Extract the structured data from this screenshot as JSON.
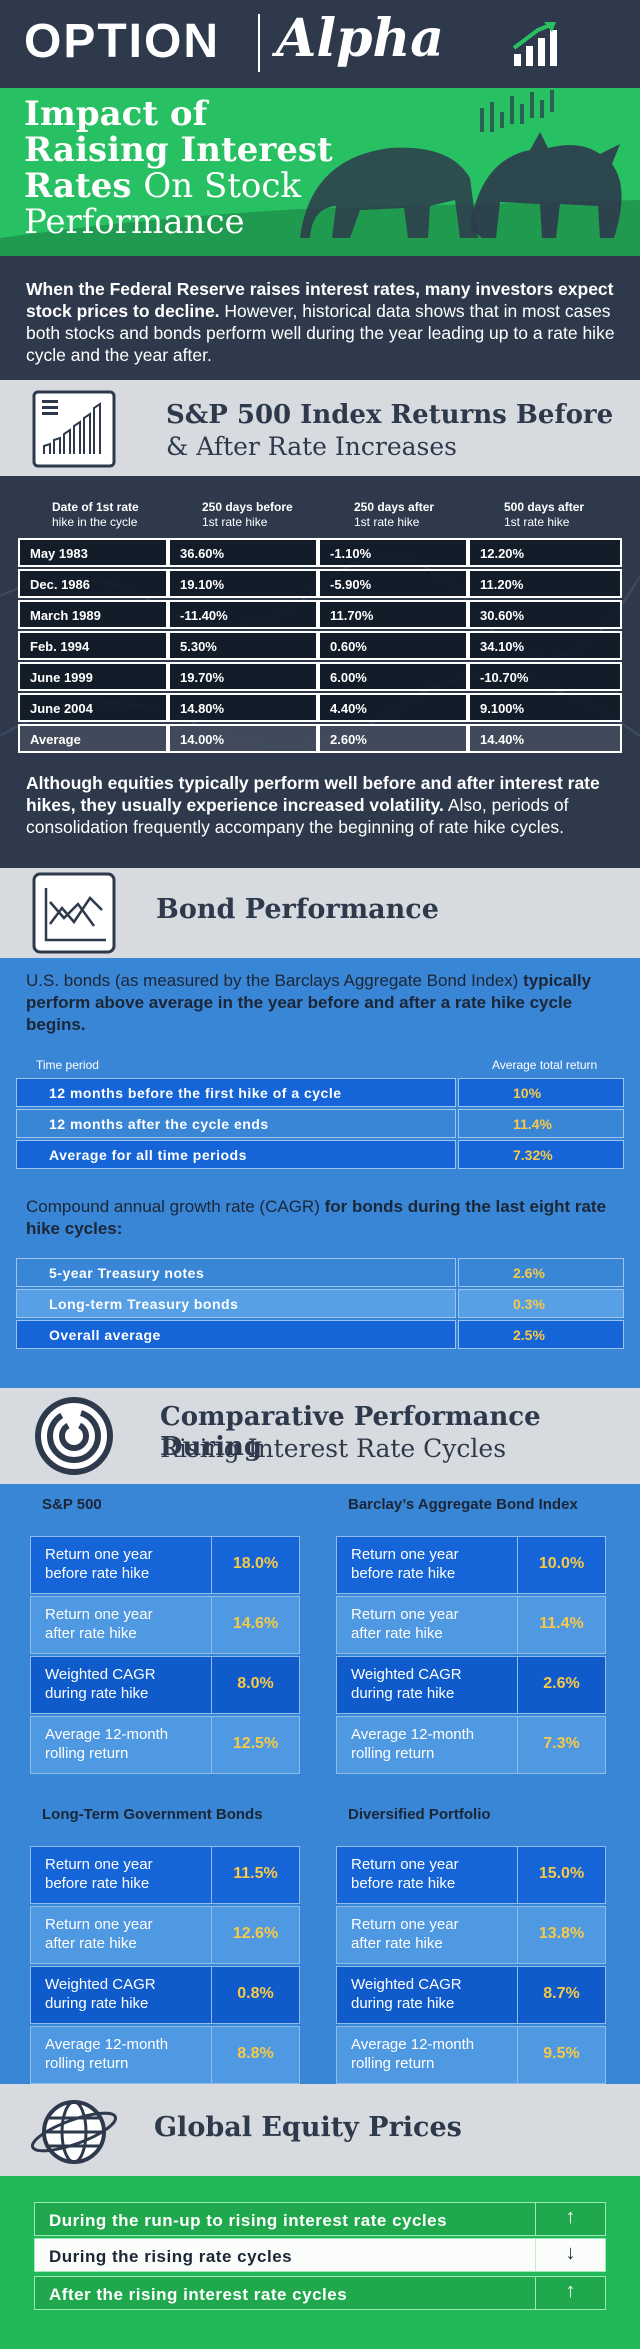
{
  "logo": {
    "option": "OPTION",
    "alpha": "Alpha"
  },
  "hero": {
    "line1": "Impact of",
    "line2": "Raising Interest",
    "line3a": "Rates",
    "line3b": "On Stock",
    "line4": "Performance"
  },
  "intro": {
    "bold": "When the Federal Reserve raises interest rates, many investors expect stock prices to decline.",
    "rest": " However, historical data shows that in most cases both stocks and bonds perform well during the year leading up to a rate hike cycle and the year after."
  },
  "section1": {
    "title_line1": "S&P 500 Index Returns Before",
    "title_line2": "& After Rate Increases",
    "columns": [
      {
        "bold": "Date of 1st rate",
        "sub": "hike in the cycle"
      },
      {
        "bold": "250 days before",
        "sub": "1st rate hike"
      },
      {
        "bold": "250 days after",
        "sub": "1st rate hike"
      },
      {
        "bold": "500 days after",
        "sub": "1st rate hike"
      }
    ],
    "rows": [
      [
        "May 1983",
        "36.60%",
        "-1.10%",
        "12.20%"
      ],
      [
        "Dec. 1986",
        "19.10%",
        "-5.90%",
        "11.20%"
      ],
      [
        "March 1989",
        "-11.40%",
        "11.70%",
        "30.60%"
      ],
      [
        "Feb. 1994",
        "5.30%",
        "0.60%",
        "34.10%"
      ],
      [
        "June 1999",
        "19.70%",
        "6.00%",
        "-10.70%"
      ],
      [
        "June 2004",
        "14.80%",
        "4.40%",
        "9.100%"
      ],
      [
        "Average",
        "14.00%",
        "2.60%",
        "14.40%"
      ]
    ],
    "note_bold": "Although equities typically perform well before and after interest rate hikes, they usually experience increased volatility.",
    "note_rest": " Also, periods of consolidation frequently accompany the beginning of rate hike cycles."
  },
  "section2": {
    "title": "Bond Performance",
    "intro_plain": "U.S. bonds (as measured by the Barclays Aggregate Bond Index) ",
    "intro_bold": "typically perform above average in the year before and after a rate hike cycle begins.",
    "head_left": "Time period",
    "head_right": "Average total return",
    "table1": [
      {
        "label": "12 months before the first hike of a cycle",
        "value": "10%"
      },
      {
        "label": "12 months after the cycle ends",
        "value": "11.4%"
      },
      {
        "label": "Average for all time periods",
        "value": "7.32%"
      }
    ],
    "cagr_plain": "Compound annual growth rate (CAGR) ",
    "cagr_bold": "for bonds during the last eight rate hike cycles:",
    "table2": [
      {
        "label": "5-year Treasury notes",
        "value": "2.6%"
      },
      {
        "label": "Long-term Treasury bonds",
        "value": "0.3%"
      },
      {
        "label": "Overall average",
        "value": "2.5%"
      }
    ]
  },
  "section3": {
    "title_line1": "Comparative Performance During",
    "title_line2": "Rising Interest Rate Cycles",
    "groups": [
      {
        "title": "S&P 500",
        "rows": [
          {
            "l1": "Return one year",
            "l2": "before rate hike",
            "value": "18.0%"
          },
          {
            "l1": "Return one year",
            "l2": "after rate hike",
            "value": "14.6%"
          },
          {
            "l1": "Weighted CAGR",
            "l2": "during rate hike",
            "value": "8.0%"
          },
          {
            "l1": "Average 12-month",
            "l2": "rolling return",
            "value": "12.5%"
          }
        ]
      },
      {
        "title": "Barclay’s Aggregate Bond Index",
        "rows": [
          {
            "l1": "Return one year",
            "l2": "before rate hike",
            "value": "10.0%"
          },
          {
            "l1": "Return one year",
            "l2": "after rate hike",
            "value": "11.4%"
          },
          {
            "l1": "Weighted CAGR",
            "l2": "during rate hike",
            "value": "2.6%"
          },
          {
            "l1": "Average 12-month",
            "l2": "rolling return",
            "value": "7.3%"
          }
        ]
      },
      {
        "title": "Long-Term Government Bonds",
        "rows": [
          {
            "l1": "Return one year",
            "l2": "before rate hike",
            "value": "11.5%"
          },
          {
            "l1": "Return one year",
            "l2": "after rate hike",
            "value": "12.6%"
          },
          {
            "l1": "Weighted CAGR",
            "l2": "during rate hike",
            "value": "0.8%"
          },
          {
            "l1": "Average 12-month",
            "l2": "rolling return",
            "value": "8.8%"
          }
        ]
      },
      {
        "title": "Diversified Portfolio",
        "rows": [
          {
            "l1": "Return one year",
            "l2": "before rate hike",
            "value": "15.0%"
          },
          {
            "l1": "Return one year",
            "l2": "after rate hike",
            "value": "13.8%"
          },
          {
            "l1": "Weighted CAGR",
            "l2": "during rate hike",
            "value": "8.7%"
          },
          {
            "l1": "Average 12-month",
            "l2": "rolling return",
            "value": "9.5%"
          }
        ]
      }
    ]
  },
  "section4": {
    "title": "Global Equity Prices",
    "rows": [
      {
        "label": "During the run-up to rising interest rate cycles",
        "arrow": "↑"
      },
      {
        "label": "During the rising rate cycles",
        "arrow": "↓"
      },
      {
        "label": "After the rising interest rate cycles",
        "arrow": "↑"
      }
    ]
  },
  "colors": {
    "green": "#27c062",
    "navy": "#2e3a4c",
    "blue": "#3a86d6",
    "gold": "#f7c948"
  }
}
